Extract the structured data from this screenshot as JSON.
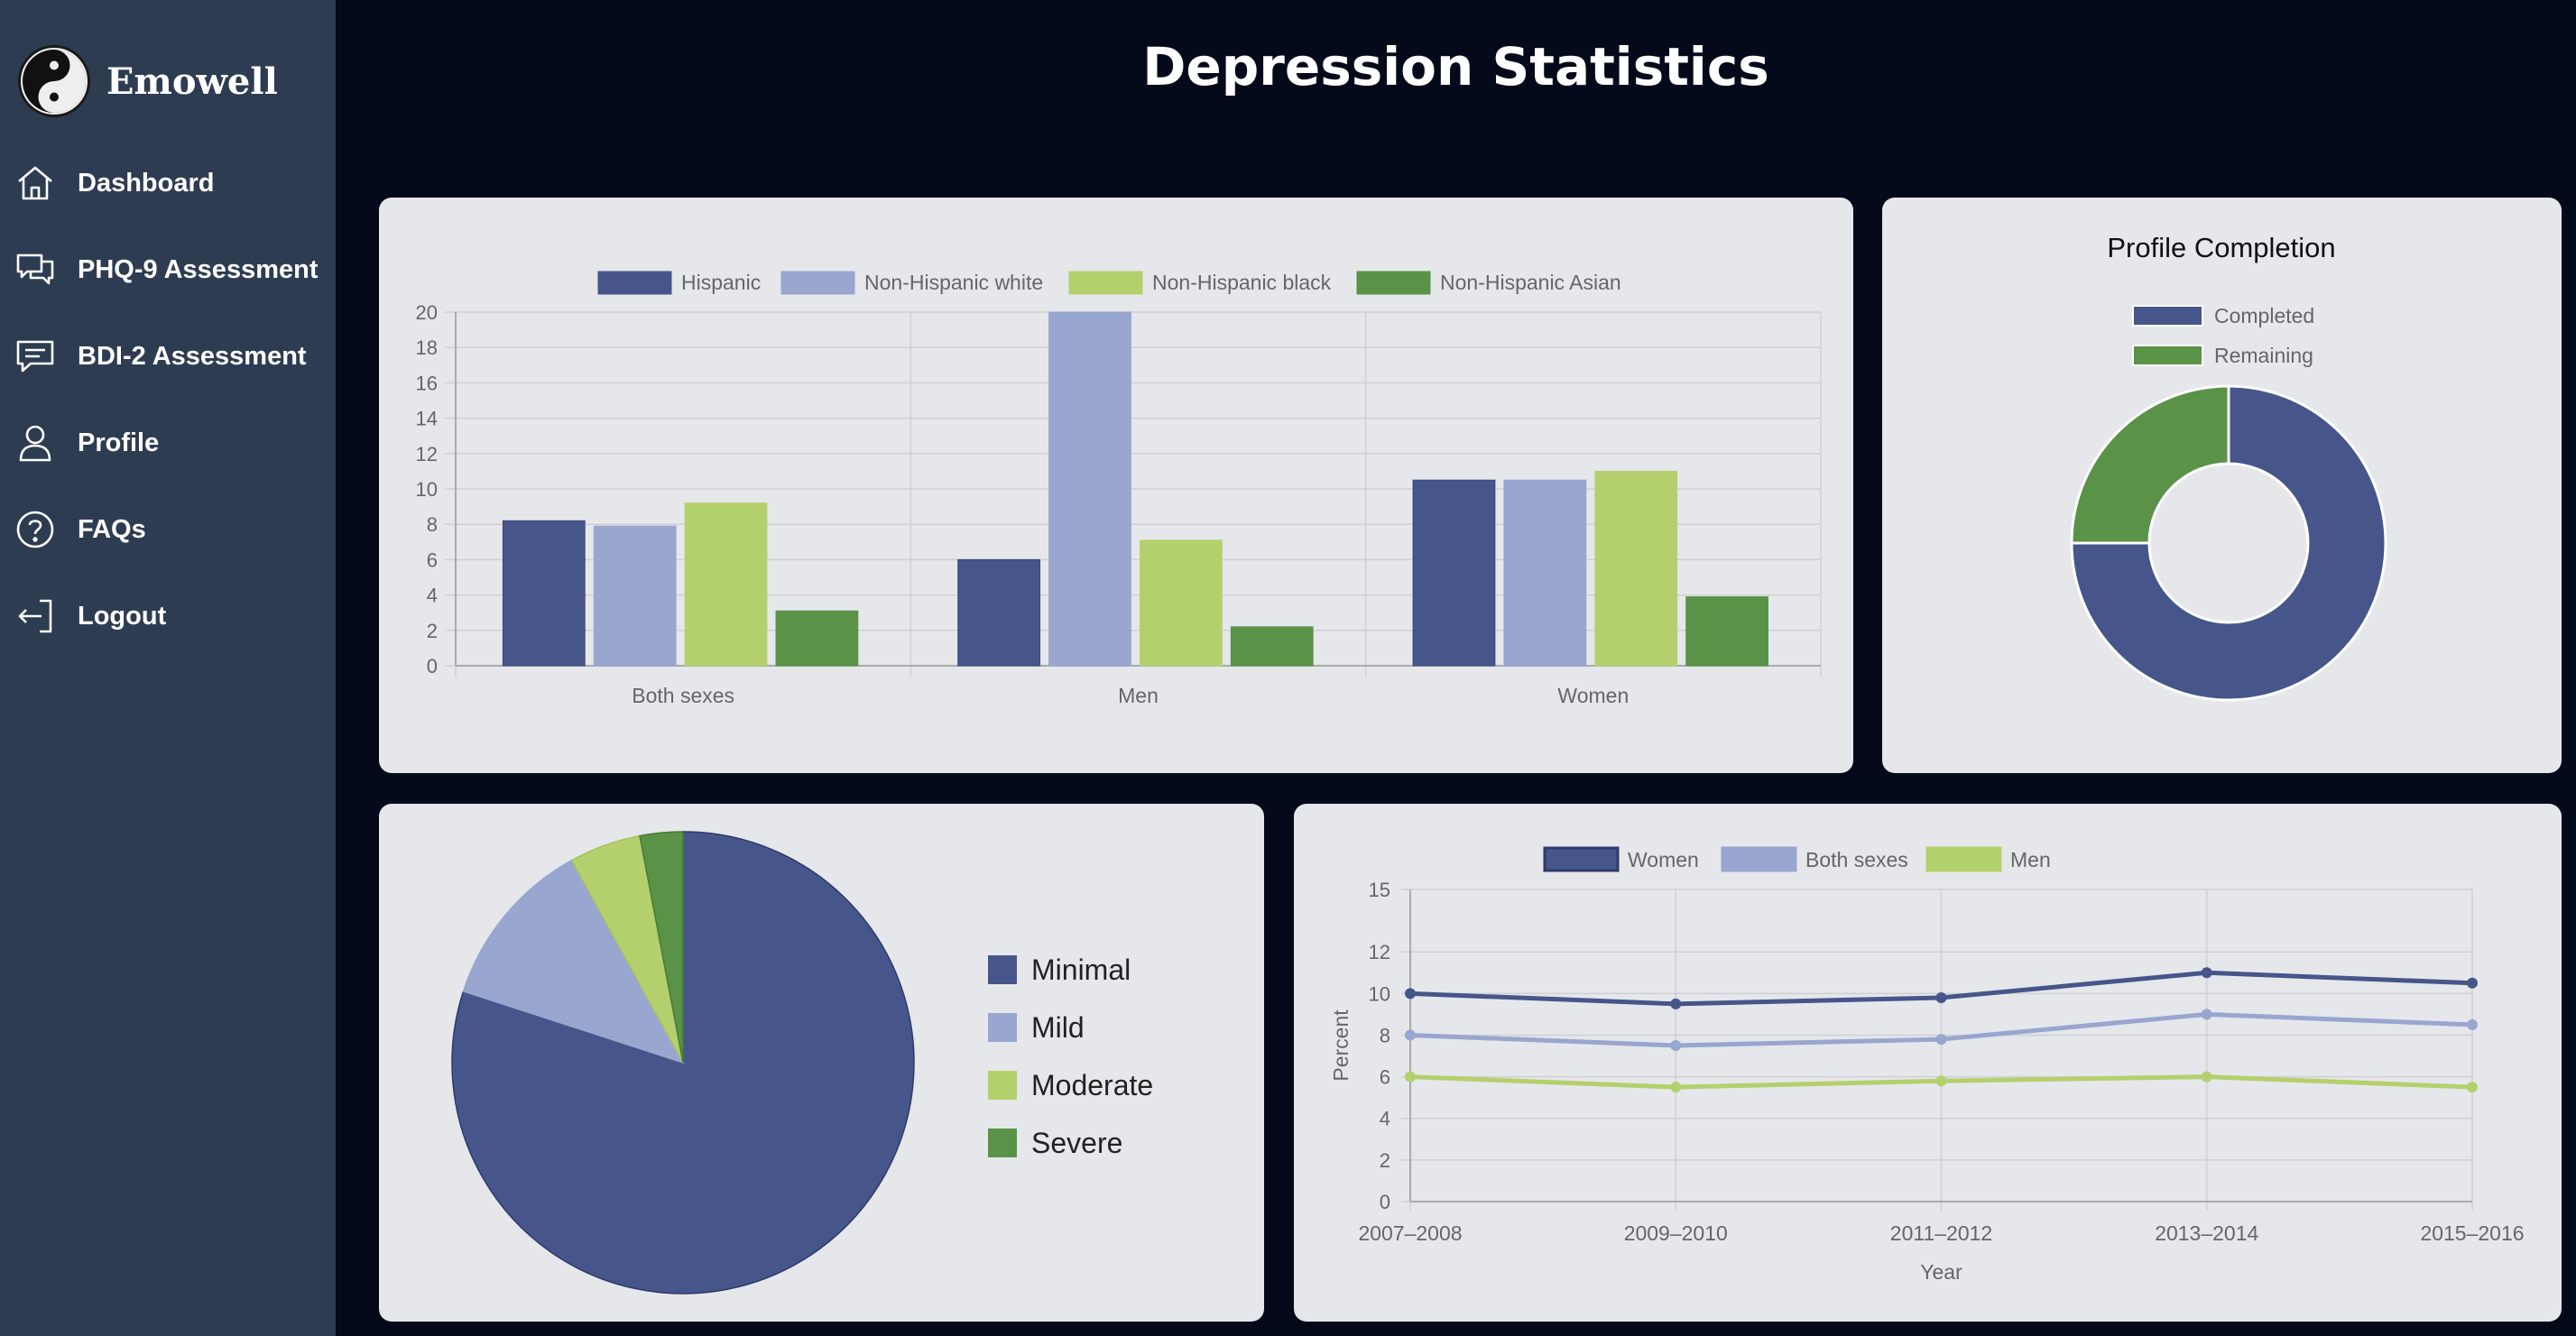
{
  "brand": {
    "name": "Emowell"
  },
  "nav": [
    {
      "label": "Dashboard",
      "icon": "home-icon"
    },
    {
      "label": "PHQ-9 Assessment",
      "icon": "chat-bubbles-icon"
    },
    {
      "label": "BDI-2 Assessment",
      "icon": "message-lines-icon"
    },
    {
      "label": "Profile",
      "icon": "user-icon"
    },
    {
      "label": "FAQs",
      "icon": "question-circle-icon"
    },
    {
      "label": "Logout",
      "icon": "logout-icon"
    }
  ],
  "page": {
    "title": "Depression Statistics"
  },
  "colors": {
    "navy": "#46568a",
    "lavender": "#98a6d0",
    "lime": "#b4d06c",
    "green": "#5a9248",
    "card": "#e6e7eb",
    "sidebar": "#2e3c52",
    "background": "#050a1a"
  },
  "chart_data": [
    {
      "type": "bar",
      "categories": [
        "Both sexes",
        "Men",
        "Women"
      ],
      "series": [
        {
          "name": "Hispanic",
          "values": [
            8.2,
            6.0,
            10.5
          ]
        },
        {
          "name": "Non-Hispanic white",
          "values": [
            7.9,
            20.0,
            10.5
          ]
        },
        {
          "name": "Non-Hispanic black",
          "values": [
            9.2,
            7.1,
            11.0
          ]
        },
        {
          "name": "Non-Hispanic Asian",
          "values": [
            3.1,
            2.2,
            3.9
          ]
        }
      ],
      "yticks": [
        "0",
        "2",
        "4",
        "6",
        "8",
        "10",
        "12",
        "14",
        "16",
        "18",
        "20"
      ],
      "ylim": [
        0,
        20
      ],
      "legend": "top",
      "grid": true
    },
    {
      "type": "doughnut",
      "title": "Profile Completion",
      "labels": [
        "Completed",
        "Remaining"
      ],
      "values": [
        75,
        25
      ],
      "legend": "top"
    },
    {
      "type": "pie",
      "labels": [
        "Minimal",
        "Mild",
        "Moderate",
        "Severe"
      ],
      "values": [
        80,
        12,
        5,
        3
      ],
      "legend": "right"
    },
    {
      "type": "line",
      "categories": [
        "2007–2008",
        "2009–2010",
        "2011–2012",
        "2013–2014",
        "2015–2016"
      ],
      "series": [
        {
          "name": "Women",
          "values": [
            10.0,
            9.5,
            9.8,
            11.0,
            10.5
          ]
        },
        {
          "name": "Both sexes",
          "values": [
            8.0,
            7.5,
            7.8,
            9.0,
            8.5
          ]
        },
        {
          "name": "Men",
          "values": [
            6.0,
            5.5,
            5.8,
            6.0,
            5.5
          ]
        }
      ],
      "yticks": [
        "0",
        "2",
        "4",
        "6",
        "8",
        "10",
        "12",
        "15"
      ],
      "ylim": [
        0,
        15
      ],
      "xlabel": "Year",
      "ylabel": "Percent",
      "legend": "top",
      "grid": true
    }
  ]
}
